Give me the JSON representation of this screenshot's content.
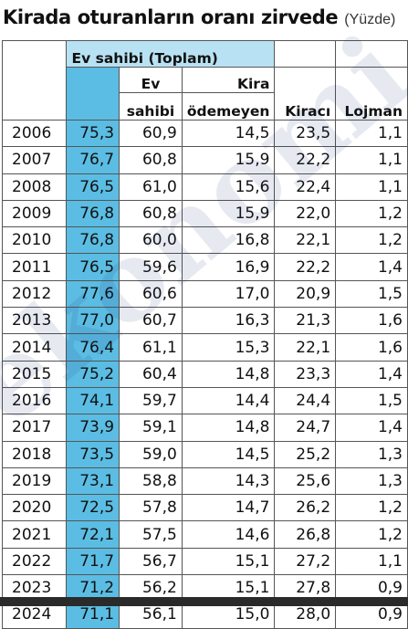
{
  "title": {
    "main": "Kirada oturanların oranı zirvede",
    "unit": "(Yüzde)"
  },
  "watermark_text": "ekonomi",
  "colors": {
    "owner_total_column": "#5bbde3",
    "owner_header": "#b8e2f3"
  },
  "header": {
    "group": "Ev sahibi (Toplam)",
    "ev_line1": "Ev",
    "ev_line2": "sahibi",
    "kira_line1": "Kira",
    "kira_line2": "ödemeyen",
    "tenant": "Kiracı",
    "housing": "Lojman"
  },
  "rows": [
    {
      "year": "2006",
      "total": "75,3",
      "owner": "60,9",
      "rent_free": "14,5",
      "tenant": "23,5",
      "housing": "1,1"
    },
    {
      "year": "2007",
      "total": "76,7",
      "owner": "60,8",
      "rent_free": "15,9",
      "tenant": "22,2",
      "housing": "1,1"
    },
    {
      "year": "2008",
      "total": "76,5",
      "owner": "61,0",
      "rent_free": "15,6",
      "tenant": "22,4",
      "housing": "1,1"
    },
    {
      "year": "2009",
      "total": "76,8",
      "owner": "60,8",
      "rent_free": "15,9",
      "tenant": "22,0",
      "housing": "1,2"
    },
    {
      "year": "2010",
      "total": "76,8",
      "owner": "60,0",
      "rent_free": "16,8",
      "tenant": "22,1",
      "housing": "1,2"
    },
    {
      "year": "2011",
      "total": "76,5",
      "owner": "59,6",
      "rent_free": "16,9",
      "tenant": "22,2",
      "housing": "1,4"
    },
    {
      "year": "2012",
      "total": "77,6",
      "owner": "60,6",
      "rent_free": "17,0",
      "tenant": "20,9",
      "housing": "1,5"
    },
    {
      "year": "2013",
      "total": "77,0",
      "owner": "60,7",
      "rent_free": "16,3",
      "tenant": "21,3",
      "housing": "1,6"
    },
    {
      "year": "2014",
      "total": "76,4",
      "owner": "61,1",
      "rent_free": "15,3",
      "tenant": "22,1",
      "housing": "1,6"
    },
    {
      "year": "2015",
      "total": "75,2",
      "owner": "60,4",
      "rent_free": "14,8",
      "tenant": "23,3",
      "housing": "1,4"
    },
    {
      "year": "2016",
      "total": "74,1",
      "owner": "59,7",
      "rent_free": "14,4",
      "tenant": "24,4",
      "housing": "1,5"
    },
    {
      "year": "2017",
      "total": "73,9",
      "owner": "59,1",
      "rent_free": "14,8",
      "tenant": "24,7",
      "housing": "1,4"
    },
    {
      "year": "2018",
      "total": "73,5",
      "owner": "59,0",
      "rent_free": "14,5",
      "tenant": "25,2",
      "housing": "1,3"
    },
    {
      "year": "2019",
      "total": "73,1",
      "owner": "58,8",
      "rent_free": "14,3",
      "tenant": "25,6",
      "housing": "1,3"
    },
    {
      "year": "2020",
      "total": "72,5",
      "owner": "57,8",
      "rent_free": "14,7",
      "tenant": "26,2",
      "housing": "1,2"
    },
    {
      "year": "2021",
      "total": "72,1",
      "owner": "57,5",
      "rent_free": "14,6",
      "tenant": "26,8",
      "housing": "1,2"
    },
    {
      "year": "2022",
      "total": "71,7",
      "owner": "56,7",
      "rent_free": "15,1",
      "tenant": "27,2",
      "housing": "1,1"
    },
    {
      "year": "2023",
      "total": "71,2",
      "owner": "56,2",
      "rent_free": "15,1",
      "tenant": "27,8",
      "housing": "0,9"
    },
    {
      "year": "2024",
      "total": "71,1",
      "owner": "56,1",
      "rent_free": "15,0",
      "tenant": "28,0",
      "housing": "0,9"
    }
  ]
}
